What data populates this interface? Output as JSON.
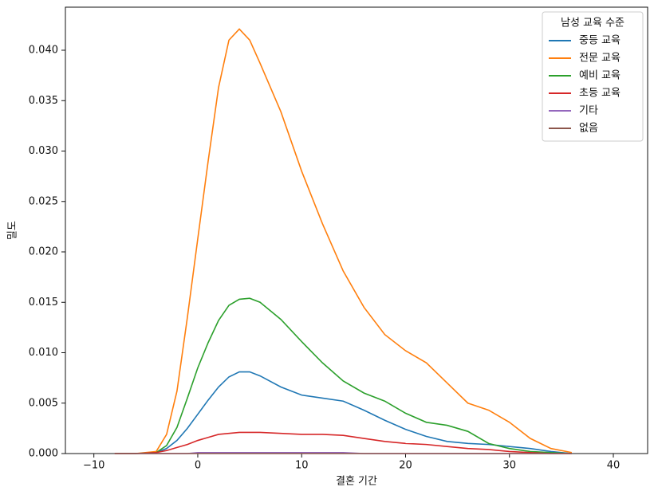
{
  "chart_data": {
    "type": "line",
    "x_label": "결혼 기간",
    "y_label": "밀도",
    "x": [
      -8,
      -6,
      -4,
      -3,
      -2,
      -1,
      0,
      1,
      2,
      3,
      4,
      5,
      6,
      8,
      10,
      12,
      14,
      16,
      18,
      20,
      22,
      24,
      26,
      28,
      30,
      32,
      34,
      36
    ],
    "series": [
      {
        "name": "중등 교육",
        "color": "#1f77b4",
        "values": [
          0,
          0,
          0.0001,
          0.0005,
          0.0013,
          0.0025,
          0.0039,
          0.0053,
          0.0066,
          0.0076,
          0.0081,
          0.0081,
          0.0077,
          0.0066,
          0.0058,
          0.0055,
          0.0052,
          0.0043,
          0.0033,
          0.0024,
          0.0017,
          0.0012,
          0.001,
          0.0009,
          0.0007,
          0.0005,
          0.0002,
          0
        ]
      },
      {
        "name": "전문 교육",
        "color": "#ff7f0e",
        "values": [
          0,
          0,
          0.0002,
          0.0019,
          0.0062,
          0.0135,
          0.0213,
          0.029,
          0.0363,
          0.041,
          0.0421,
          0.041,
          0.0387,
          0.0339,
          0.028,
          0.0228,
          0.0181,
          0.0145,
          0.0118,
          0.0102,
          0.009,
          0.007,
          0.005,
          0.0043,
          0.0031,
          0.0015,
          0.0005,
          0.0001
        ]
      },
      {
        "name": "예비 교육",
        "color": "#2ca02c",
        "values": [
          0,
          0,
          0.0001,
          0.0008,
          0.0026,
          0.0055,
          0.0085,
          0.011,
          0.0132,
          0.0147,
          0.0153,
          0.0154,
          0.015,
          0.0133,
          0.0111,
          0.009,
          0.0072,
          0.006,
          0.0052,
          0.004,
          0.0031,
          0.0028,
          0.0022,
          0.001,
          0.0005,
          0.0002,
          0.0001,
          0
        ]
      },
      {
        "name": "초등 교육",
        "color": "#d62728",
        "values": [
          0,
          0,
          0.0001,
          0.0003,
          0.0006,
          0.0009,
          0.0013,
          0.0016,
          0.0019,
          0.002,
          0.0021,
          0.0021,
          0.0021,
          0.002,
          0.0019,
          0.0019,
          0.0018,
          0.0015,
          0.0012,
          0.001,
          0.0009,
          0.0007,
          0.0005,
          0.0004,
          0.0002,
          0.0001,
          0,
          0
        ]
      },
      {
        "name": "기타",
        "color": "#9467bd",
        "values": [
          0,
          0,
          0,
          0,
          0,
          0,
          0.0001,
          0.0001,
          0.0001,
          0.0001,
          0.0001,
          0.0001,
          0.0001,
          0.0001,
          0.0001,
          0.0001,
          0.0001,
          0,
          0,
          0,
          0,
          0,
          0,
          0,
          0,
          0,
          0,
          0
        ]
      },
      {
        "name": "없음",
        "color": "#8c564b",
        "values": [
          0,
          0,
          0,
          0,
          0,
          0,
          0,
          0,
          0,
          0,
          0,
          0,
          0,
          0,
          0,
          0,
          0,
          0,
          0,
          0,
          0,
          0,
          0,
          0,
          0,
          0,
          0,
          0
        ]
      }
    ],
    "legend_title": "남성 교육 수준",
    "legend": "upper right",
    "xlim": [
      -12.74,
      43.3
    ],
    "xticks": [
      {
        "value": -10,
        "label": "−10"
      },
      0,
      10,
      20,
      30,
      40
    ],
    "ylim": [
      0,
      0.04427
    ],
    "yticks": [
      {
        "value": 0,
        "label": "0.000"
      },
      {
        "value": 0.005,
        "label": "0.005"
      },
      {
        "value": 0.01,
        "label": "0.010"
      },
      {
        "value": 0.015,
        "label": "0.015"
      },
      {
        "value": 0.02,
        "label": "0.020"
      },
      {
        "value": 0.025,
        "label": "0.025"
      },
      {
        "value": 0.03,
        "label": "0.030"
      },
      {
        "value": 0.035,
        "label": "0.035"
      },
      {
        "value": 0.04,
        "label": "0.040"
      }
    ],
    "grid": false
  }
}
